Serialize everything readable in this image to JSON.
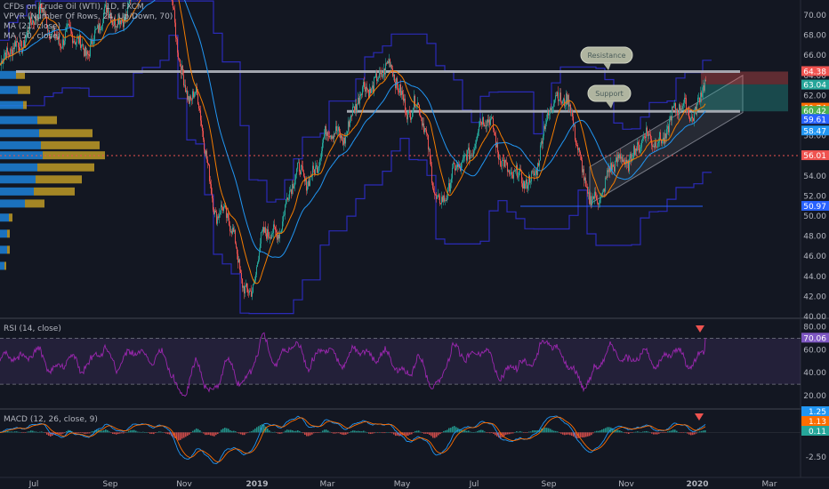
{
  "legend": {
    "symbol": "CFDs on Crude Oil (WTI), 1D, FXCM",
    "vpvr": "VPVR (Number Of Rows, 24, Up/Down, 70)",
    "ma1": "MA (21, close)",
    "ma2": "MA (50, close)"
  },
  "rsi_legend": "RSI (14, close)",
  "macd_legend": "MACD (12, 26, close, 9)",
  "annotations": {
    "resistance": "Resistance",
    "support": "Support"
  },
  "colors": {
    "background": "#131722",
    "candle_up": "#26a69a",
    "candle_down": "#ef5350",
    "ma21": "#f57c00",
    "ma50": "#2196f3",
    "vpvr_line": "#2b2bb8",
    "rsi": "#9c27b0",
    "macd": "#2196f3",
    "signal": "#ff6d00",
    "vp_up": "#1e88e5",
    "vp_down": "#c9a227"
  },
  "chart_data": [
    {
      "type": "candlestick",
      "title": "CFDs on Crude Oil (WTI), 1D, FXCM",
      "x_ticks": [
        "Jul",
        "Sep",
        "Nov",
        "2019",
        "Mar",
        "May",
        "Jul",
        "Sep",
        "Nov",
        "2020",
        "Mar"
      ],
      "y_ticks": [
        "40.00",
        "42.00",
        "44.00",
        "46.00",
        "48.00",
        "50.00",
        "52.00",
        "54.00",
        "56.00",
        "58.00",
        "60.00",
        "62.00",
        "64.00",
        "66.00",
        "68.00",
        "70.00"
      ],
      "ylim": [
        40,
        71.5
      ],
      "anchors": [
        {
          "x": "Jun 2018",
          "y": 65.0
        },
        {
          "x": "Jul 2018",
          "y": 69.5
        },
        {
          "x": "Aug 2018",
          "y": 67.0
        },
        {
          "x": "Sep 2018",
          "y": 70.0
        },
        {
          "x": "Oct 2018",
          "y": 74.5
        },
        {
          "x": "early Nov 2018",
          "y": 62.0
        },
        {
          "x": "late Nov 2018",
          "y": 51.0
        },
        {
          "x": "late Dec 2018",
          "y": 43.0
        },
        {
          "x": "Jan 2019",
          "y": 48.0
        },
        {
          "x": "Feb 2019",
          "y": 54.0
        },
        {
          "x": "Mar 2019",
          "y": 58.5
        },
        {
          "x": "Apr 2019",
          "y": 64.5
        },
        {
          "x": "May 2019",
          "y": 61.0
        },
        {
          "x": "early Jun 2019",
          "y": 52.0
        },
        {
          "x": "Jul 2019",
          "y": 59.0
        },
        {
          "x": "Aug 2019",
          "y": 53.0
        },
        {
          "x": "mid Sep 2019",
          "y": 62.5
        },
        {
          "x": "early Oct 2019",
          "y": 52.0
        },
        {
          "x": "Nov 2019",
          "y": 57.0
        },
        {
          "x": "Dec 2019",
          "y": 61.0
        },
        {
          "x": "early Jan 2020",
          "y": 63.1
        }
      ],
      "series": [
        {
          "name": "MA (21, close)"
        },
        {
          "name": "MA (50, close)"
        }
      ],
      "price_labels": [
        {
          "value": "64.38",
          "color": "#ef5350"
        },
        {
          "value": "63.10",
          "color": "#131722"
        },
        {
          "value": "63.04",
          "color": "#26a69a"
        },
        {
          "value": "60.74",
          "color": "#ff6d00"
        },
        {
          "value": "60.42",
          "color": "#4caf50"
        },
        {
          "value": "59.61",
          "color": "#2962ff"
        },
        {
          "value": "58.47",
          "color": "#2196f3"
        },
        {
          "value": "56.01",
          "color": "#ef5350"
        },
        {
          "value": "50.97",
          "color": "#2962ff"
        }
      ],
      "resistance_level": 64.38,
      "support_level": 60.42,
      "poc_level": 56.01,
      "trade_box": {
        "entry": 63.1,
        "stop": 64.38,
        "target": 60.42
      },
      "volume_profile": [
        {
          "price": 64.0,
          "up": 18,
          "down": 28
        },
        {
          "price": 62.5,
          "up": 20,
          "down": 34
        },
        {
          "price": 61.0,
          "up": 26,
          "down": 30
        },
        {
          "price": 59.5,
          "up": 42,
          "down": 64
        },
        {
          "price": 58.2,
          "up": 44,
          "down": 104
        },
        {
          "price": 57.0,
          "up": 46,
          "down": 112
        },
        {
          "price": 56.0,
          "up": 48,
          "down": 118
        },
        {
          "price": 54.8,
          "up": 42,
          "down": 106
        },
        {
          "price": 53.6,
          "up": 40,
          "down": 92
        },
        {
          "price": 52.4,
          "up": 38,
          "down": 84
        },
        {
          "price": 51.2,
          "up": 28,
          "down": 50
        },
        {
          "price": 49.8,
          "up": 10,
          "down": 4
        },
        {
          "price": 48.2,
          "up": 8,
          "down": 3
        },
        {
          "price": 46.6,
          "up": 8,
          "down": 3
        },
        {
          "price": 45.0,
          "up": 5,
          "down": 2
        }
      ]
    },
    {
      "type": "line",
      "title": "RSI (14, close)",
      "y_ticks": [
        "20.00",
        "40.00",
        "60.00",
        "80.00"
      ],
      "ylim": [
        10,
        85
      ],
      "bands": [
        30,
        70
      ],
      "last_value": "70.06"
    },
    {
      "type": "bar",
      "title": "MACD (12, 26, close, 9)",
      "y_ticks": [
        "-2.50"
      ],
      "ylim": [
        -4.5,
        2.3
      ],
      "last_values": [
        {
          "value": "1.25",
          "color": "#2196f3"
        },
        {
          "value": "1.13",
          "color": "#ff6d00"
        },
        {
          "value": "0.11",
          "color": "#26a69a"
        }
      ]
    }
  ]
}
